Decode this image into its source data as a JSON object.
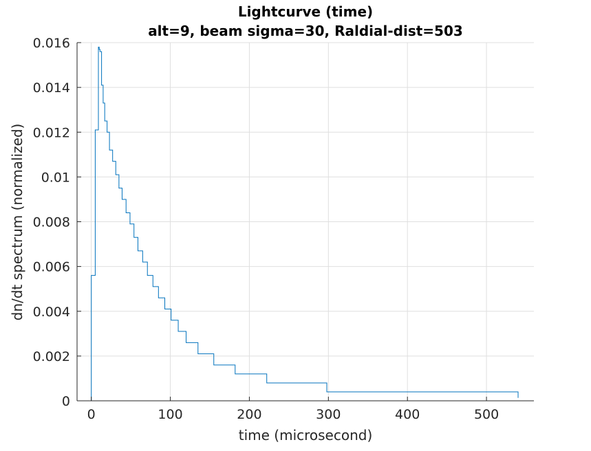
{
  "chart_data": {
    "type": "line",
    "style": "stairs",
    "title": "Lightcurve (time)",
    "subtitle": "alt=9, beam sigma=30, Raldial-dist=503",
    "xlabel": "time (microsecond)",
    "ylabel": "dn/dt spectrum (normalized)",
    "xlim": [
      -18,
      560
    ],
    "ylim": [
      0,
      0.016
    ],
    "xticks": [
      0,
      100,
      200,
      300,
      400,
      500
    ],
    "xtick_labels": [
      "0",
      "100",
      "200",
      "300",
      "400",
      "500"
    ],
    "yticks": [
      0,
      0.002,
      0.004,
      0.006,
      0.008,
      0.01,
      0.012,
      0.014,
      0.016
    ],
    "ytick_labels": [
      "0",
      "0.002",
      "0.004",
      "0.006",
      "0.008",
      "0.01",
      "0.012",
      "0.014",
      "0.016"
    ],
    "grid": true,
    "line_color": "#0072bd",
    "series": [
      {
        "edges": [
          0,
          2,
          5,
          9,
          10,
          11,
          13,
          15,
          17,
          20,
          23,
          27,
          31,
          35,
          39,
          44,
          49,
          54,
          59,
          65,
          71,
          78,
          85,
          93,
          101,
          110,
          120,
          135,
          155,
          182,
          222,
          298,
          540
        ],
        "values": [
          0.0056,
          0.0056,
          0.0121,
          0.0158,
          0.0157,
          0.0156,
          0.0141,
          0.0133,
          0.0125,
          0.012,
          0.0112,
          0.0107,
          0.0101,
          0.0095,
          0.009,
          0.0084,
          0.0079,
          0.0073,
          0.0067,
          0.0062,
          0.0056,
          0.0051,
          0.0046,
          0.0041,
          0.0036,
          0.0031,
          0.0026,
          0.0021,
          0.0016,
          0.0012,
          0.0008,
          0.0004,
          0.00013
        ]
      }
    ]
  }
}
